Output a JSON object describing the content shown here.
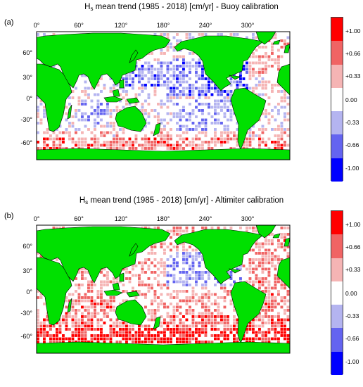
{
  "panels": [
    {
      "label": "(a)",
      "title_main": "H",
      "title_sub": "s",
      "title_rest": " mean trend (1985 - 2018) [cm/yr] - Buoy calibration",
      "scheme": "buoy"
    },
    {
      "label": "(b)",
      "title_main": "H",
      "title_sub": "s",
      "title_rest": " mean trend (1985 - 2018) [cm/yr] - Altimiter calibration",
      "scheme": "altimeter"
    }
  ],
  "lon_ticks": [
    "0°",
    "60°",
    "120°",
    "180°",
    "240°",
    "300°"
  ],
  "lat_ticks": [
    "60°",
    "30°",
    "0°",
    "-30°",
    "-60°"
  ],
  "colorbar": {
    "labels": [
      "+1.00",
      "+0.66",
      "+0.33",
      "0.00",
      "-0.33",
      "-0.66",
      "-1.00"
    ],
    "colors": [
      "#ff0000",
      "#f06464",
      "#f5b4b4",
      "#ffffff",
      "#b4b4f0",
      "#6464f0",
      "#0000ff"
    ]
  },
  "colors": {
    "land": "#00e000",
    "coast": "#000000"
  }
}
